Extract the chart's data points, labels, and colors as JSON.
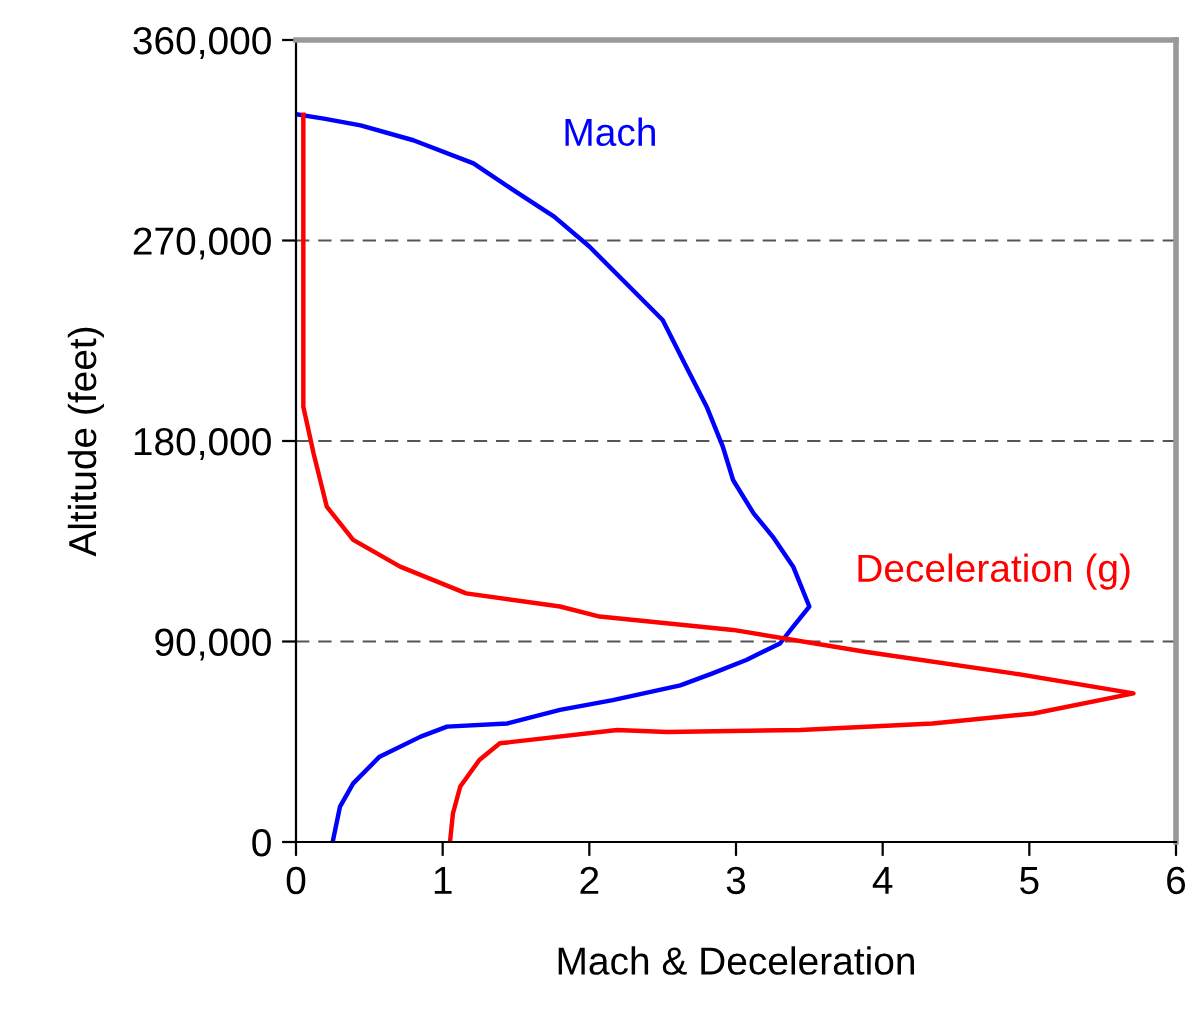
{
  "chart_data": {
    "type": "line",
    "xlabel": "Mach & Deceleration",
    "ylabel": "Altitude (feet)",
    "xlim": [
      0,
      6
    ],
    "xticks": [
      0,
      1,
      2,
      3,
      4,
      5,
      6
    ],
    "ylim": [
      0,
      360000
    ],
    "yticks": [
      {
        "value": 0,
        "label": "0"
      },
      {
        "value": 90000,
        "label": "90,000"
      },
      {
        "value": 180000,
        "label": "180,000"
      },
      {
        "value": 270000,
        "label": "270,000"
      },
      {
        "value": 360000,
        "label": "360,000"
      }
    ],
    "grid": "y",
    "legend": false,
    "line_style": "solid",
    "marker": "none",
    "series": [
      {
        "name": "Mach",
        "color": "#0000ff",
        "x": [
          0.02,
          0.19,
          0.44,
          0.8,
          1.21,
          1.48,
          1.76,
          2.0,
          2.25,
          2.5,
          2.66,
          2.8,
          2.91,
          2.98,
          3.12,
          3.25,
          3.39,
          3.5,
          3.39,
          3.3,
          3.07,
          2.84,
          2.62,
          2.16,
          1.8,
          1.44,
          1.03,
          0.85,
          0.57,
          0.39,
          0.3,
          0.25
        ],
        "values": [
          326500,
          324700,
          321700,
          315000,
          304600,
          292700,
          280700,
          267300,
          250800,
          234300,
          213400,
          195400,
          177500,
          162500,
          147500,
          137100,
          123600,
          105700,
          96700,
          89100,
          81700,
          75700,
          70300,
          63700,
          59300,
          53200,
          51800,
          47300,
          38300,
          26300,
          15900,
          0
        ]
      },
      {
        "name": "Deceleration (g)",
        "color": "#ff0000",
        "x": [
          0.05,
          0.05,
          0.12,
          0.21,
          0.39,
          0.71,
          1.16,
          1.8,
          2.07,
          2.98,
          3.89,
          4.89,
          5.71,
          5.03,
          4.34,
          3.44,
          2.53,
          2.19,
          1.39,
          1.25,
          1.12,
          1.07,
          1.05
        ],
        "values": [
          326500,
          195400,
          174400,
          150500,
          135600,
          123600,
          111600,
          105700,
          101200,
          95200,
          85300,
          75700,
          66700,
          57700,
          53200,
          50300,
          49400,
          50300,
          44300,
          36800,
          24900,
          12800,
          0
        ]
      }
    ]
  }
}
